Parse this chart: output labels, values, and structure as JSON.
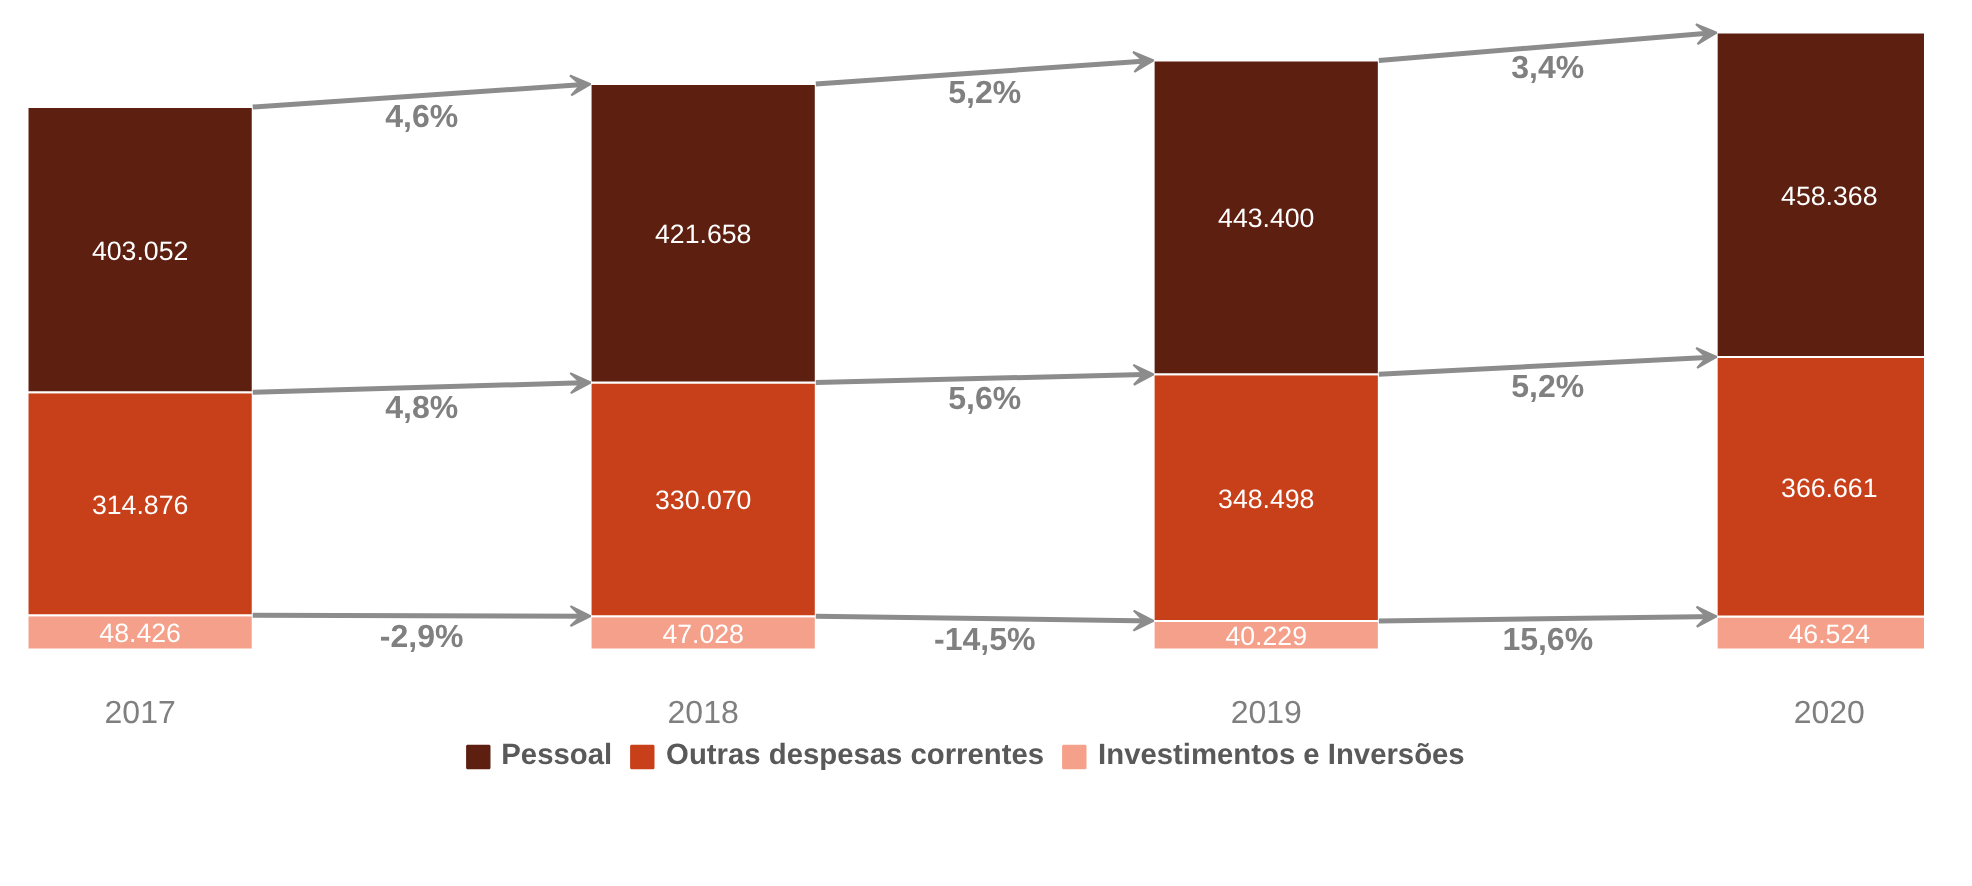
{
  "chart_data": {
    "type": "bar",
    "stacked": true,
    "categories": [
      "2017",
      "2018",
      "2019",
      "2020"
    ],
    "series": [
      {
        "name": "Investimentos e Inversões",
        "color": "#f4a08a",
        "values": [
          48426,
          47028,
          40229,
          46524
        ],
        "value_labels": [
          "48.426",
          "47.028",
          "40.229",
          "46.524"
        ]
      },
      {
        "name": "Outras despesas correntes",
        "color": "#c8401a",
        "values": [
          314876,
          330070,
          348498,
          366661
        ],
        "value_labels": [
          "314.876",
          "330.070",
          "348.498",
          "366.661"
        ]
      },
      {
        "name": "Pessoal",
        "color": "#5c1f10",
        "values": [
          403052,
          421658,
          443400,
          458368
        ],
        "value_labels": [
          "403.052",
          "421.658",
          "443.400",
          "458.368"
        ]
      }
    ],
    "tick_labels": "x",
    "grid": false,
    "legend": "bottom",
    "annotations": [
      "-2,9%",
      "-14,5%",
      "15,6%",
      "4,8%",
      "5,6%",
      "5,2%",
      "4,6%",
      "5,2%",
      "3,4%"
    ]
  }
}
